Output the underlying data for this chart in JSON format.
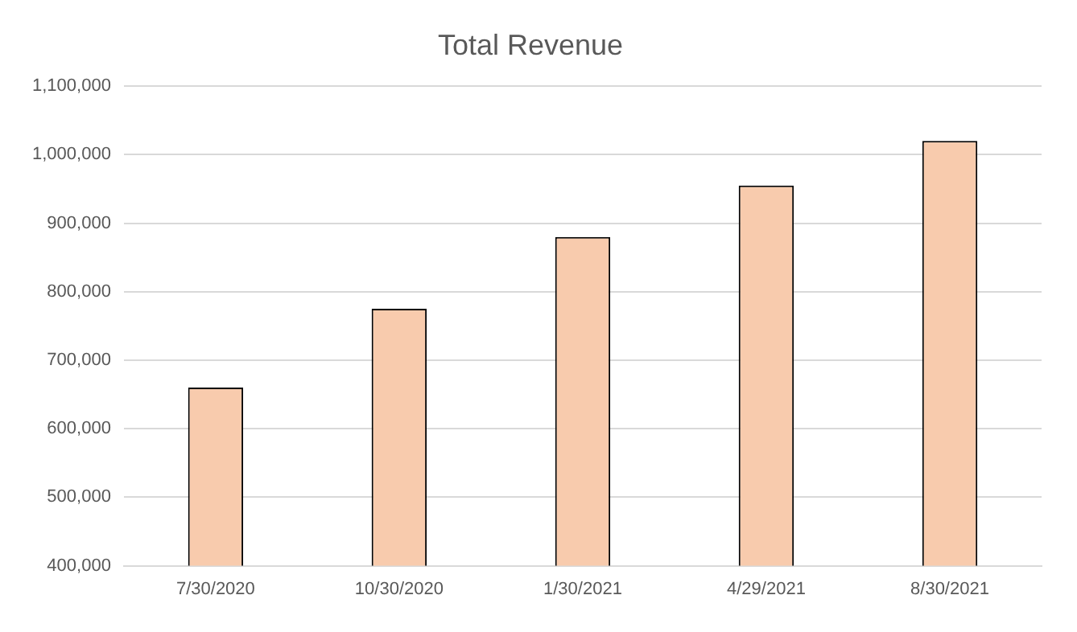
{
  "chart_data": {
    "type": "bar",
    "title": "Total Revenue",
    "categories": [
      "7/30/2020",
      "10/30/2020",
      "1/30/2021",
      "4/29/2021",
      "8/30/2021"
    ],
    "values": [
      660000,
      775000,
      880000,
      955000,
      1020000
    ],
    "color": "#f8cbad",
    "ylim": [
      400000,
      1100000
    ],
    "yticks": [
      {
        "value": 400000,
        "label": "400,000"
      },
      {
        "value": 500000,
        "label": "500,000"
      },
      {
        "value": 600000,
        "label": "600,000"
      },
      {
        "value": 700000,
        "label": "700,000"
      },
      {
        "value": 800000,
        "label": "800,000"
      },
      {
        "value": 900000,
        "label": "900,000"
      },
      {
        "value": 1000000,
        "label": "1,000,000"
      },
      {
        "value": 1100000,
        "label": "1,100,000"
      }
    ],
    "grid": "y",
    "legend": false
  }
}
